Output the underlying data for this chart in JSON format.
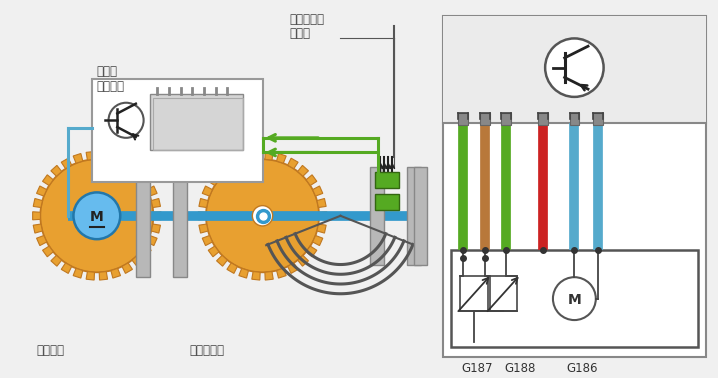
{
  "bg_color": "#f0f0f0",
  "white": "#ffffff",
  "gear_color": "#e8a030",
  "gear_border": "#c07820",
  "shaft_color": "#3399cc",
  "plate_color": "#b0b0b0",
  "motor_fill": "#66bbee",
  "green_color": "#55aa22",
  "blue_line": "#55aacc",
  "right_panel_bg": "#ebebeb",
  "right_panel_top_bg": "#f0f0f0",
  "wire_colors": [
    "#55aa22",
    "#b8783a",
    "#55aa22",
    "#cc2222",
    "#55aacc",
    "#55aacc"
  ],
  "label_color": "#333333",
  "labels": {
    "fadongji": "发动机\n控制单元",
    "jiqimenjiaodu_1": "节气门角度",
    "jiqimenjiaodu_2": "传感器",
    "qudongzhuangzhi": "驱动装置",
    "jiqimenfamen": "节气门阀门",
    "G187": "G187",
    "G188": "G188",
    "G186": "G186"
  }
}
